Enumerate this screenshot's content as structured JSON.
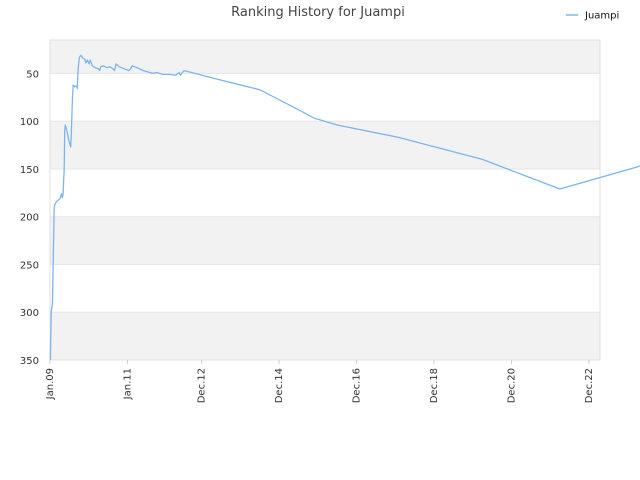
{
  "chart_data": {
    "type": "line",
    "title": "Ranking History for Juampi",
    "xlabel": "",
    "ylabel": "",
    "y_inverted": true,
    "ylim": [
      350,
      15
    ],
    "xlim": [
      "2009-01-01",
      "2023-03-15"
    ],
    "yticks": [
      50,
      100,
      150,
      200,
      250,
      300,
      350
    ],
    "xticks": [
      {
        "date": "2009-01-01",
        "label": "Jan.09"
      },
      {
        "date": "2011-01-01",
        "label": "Jan.11"
      },
      {
        "date": "2012-12-01",
        "label": "Dec.12"
      },
      {
        "date": "2014-12-01",
        "label": "Dec.14"
      },
      {
        "date": "2016-12-01",
        "label": "Dec.16"
      },
      {
        "date": "2018-12-01",
        "label": "Dec.18"
      },
      {
        "date": "2020-12-01",
        "label": "Dec.20"
      },
      {
        "date": "2022-12-01",
        "label": "Dec.22"
      }
    ],
    "grid": true,
    "band_colors": [
      "#f2f2f2",
      "#ffffff"
    ],
    "legend": {
      "position": "top-right"
    },
    "series": [
      {
        "name": "Juampi",
        "color": "#7cb5ec",
        "points": [
          [
            "2009-01-05",
            350
          ],
          [
            "2009-01-12",
            300
          ],
          [
            "2009-01-25",
            290
          ],
          [
            "2009-02-01",
            240
          ],
          [
            "2009-02-10",
            190
          ],
          [
            "2009-02-20",
            186
          ],
          [
            "2009-03-15",
            183
          ],
          [
            "2009-04-05",
            181
          ],
          [
            "2009-04-20",
            176
          ],
          [
            "2009-04-28",
            180
          ],
          [
            "2009-05-05",
            175
          ],
          [
            "2009-05-10",
            160
          ],
          [
            "2009-05-15",
            152
          ],
          [
            "2009-05-20",
            110
          ],
          [
            "2009-05-25",
            104
          ],
          [
            "2009-06-05",
            108
          ],
          [
            "2009-07-01",
            122
          ],
          [
            "2009-07-15",
            127
          ],
          [
            "2009-07-20",
            115
          ],
          [
            "2009-07-25",
            100
          ],
          [
            "2009-08-01",
            75
          ],
          [
            "2009-08-08",
            62
          ],
          [
            "2009-08-20",
            64
          ],
          [
            "2009-09-10",
            63
          ],
          [
            "2009-09-15",
            66
          ],
          [
            "2009-09-22",
            47
          ],
          [
            "2009-10-05",
            33
          ],
          [
            "2009-10-20",
            31
          ],
          [
            "2009-11-05",
            34
          ],
          [
            "2009-11-25",
            35
          ],
          [
            "2009-12-05",
            39
          ],
          [
            "2009-12-20",
            36
          ],
          [
            "2010-01-05",
            40
          ],
          [
            "2010-01-15",
            36
          ],
          [
            "2010-02-05",
            42
          ],
          [
            "2010-03-01",
            44
          ],
          [
            "2010-04-01",
            45
          ],
          [
            "2010-04-15",
            47
          ],
          [
            "2010-04-25",
            43
          ],
          [
            "2010-05-20",
            42
          ],
          [
            "2010-06-20",
            44
          ],
          [
            "2010-07-20",
            43
          ],
          [
            "2010-08-15",
            45
          ],
          [
            "2010-09-01",
            47
          ],
          [
            "2010-09-15",
            40
          ],
          [
            "2010-10-15",
            43
          ],
          [
            "2010-12-01",
            45
          ],
          [
            "2011-01-15",
            47
          ],
          [
            "2011-02-01",
            45
          ],
          [
            "2011-02-15",
            42
          ],
          [
            "2011-04-01",
            44
          ],
          [
            "2011-06-01",
            47
          ],
          [
            "2011-08-01",
            49
          ],
          [
            "2011-09-01",
            50
          ],
          [
            "2011-10-01",
            49
          ],
          [
            "2011-12-01",
            51
          ],
          [
            "2012-02-01",
            51
          ],
          [
            "2012-04-01",
            52
          ],
          [
            "2012-05-01",
            49
          ],
          [
            "2012-05-15",
            52
          ],
          [
            "2012-06-01",
            49
          ],
          [
            "2012-06-20",
            47
          ],
          [
            "2013-06-01",
            57
          ],
          [
            "2014-06-01",
            67
          ],
          [
            "2015-06-01",
            88
          ],
          [
            "2015-11-01",
            97
          ],
          [
            "2016-06-01",
            104
          ],
          [
            "2018-01-01",
            117
          ],
          [
            "2020-03-01",
            140
          ],
          [
            "2022-03-01",
            171
          ],
          [
            "2024-07-01",
            144
          ]
        ]
      }
    ]
  }
}
